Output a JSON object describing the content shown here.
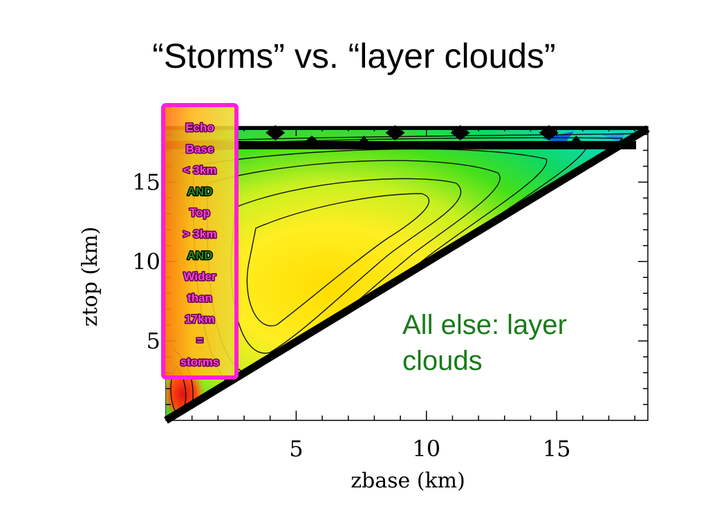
{
  "slide_title": "“Storms” vs. “layer clouds”",
  "colors": {
    "storm_box_border": "#ff1fd6",
    "box_text_pink": "#ff3fd8",
    "box_text_green": "#1a8a1a",
    "annotation_green": "#1a7a1a",
    "contour_line": "#111111"
  },
  "chart_data": {
    "type": "heatmap",
    "description": "Contoured joint frequency of radar echo base height vs echo top height",
    "xlabel": "zbase (km)",
    "ylabel": "ztop (km)",
    "xlim": [
      0,
      18.5
    ],
    "ylim": [
      0,
      18.5
    ],
    "x_ticks": [
      5,
      10,
      15
    ],
    "y_ticks": [
      5,
      10,
      15
    ],
    "x_tick_labels": [
      "5",
      "10",
      "15"
    ],
    "y_tick_labels": [
      "5",
      "10",
      "15"
    ],
    "valid_region": "ztop > zbase (upper-left triangle)",
    "peak_region": {
      "zbase_center": 5,
      "ztop_center": 10
    },
    "secondary_max": {
      "zbase": 0.5,
      "ztop": 1
    },
    "colormap_order_low_to_high": [
      "blue",
      "cyan",
      "green",
      "yellow-green",
      "yellow",
      "orange",
      "red"
    ],
    "storm_criteria_box": {
      "lines": [
        "Echo",
        "Base",
        "< 3km",
        "AND",
        "Top",
        "> 3km",
        "AND",
        "Wider",
        "than",
        "17km",
        "=",
        "storms"
      ],
      "line_colors": [
        "pink",
        "pink",
        "pink",
        "green",
        "pink",
        "pink",
        "green",
        "pink",
        "pink",
        "pink",
        "pink",
        "pink"
      ]
    },
    "annotation": [
      "All else: layer",
      "clouds"
    ]
  }
}
